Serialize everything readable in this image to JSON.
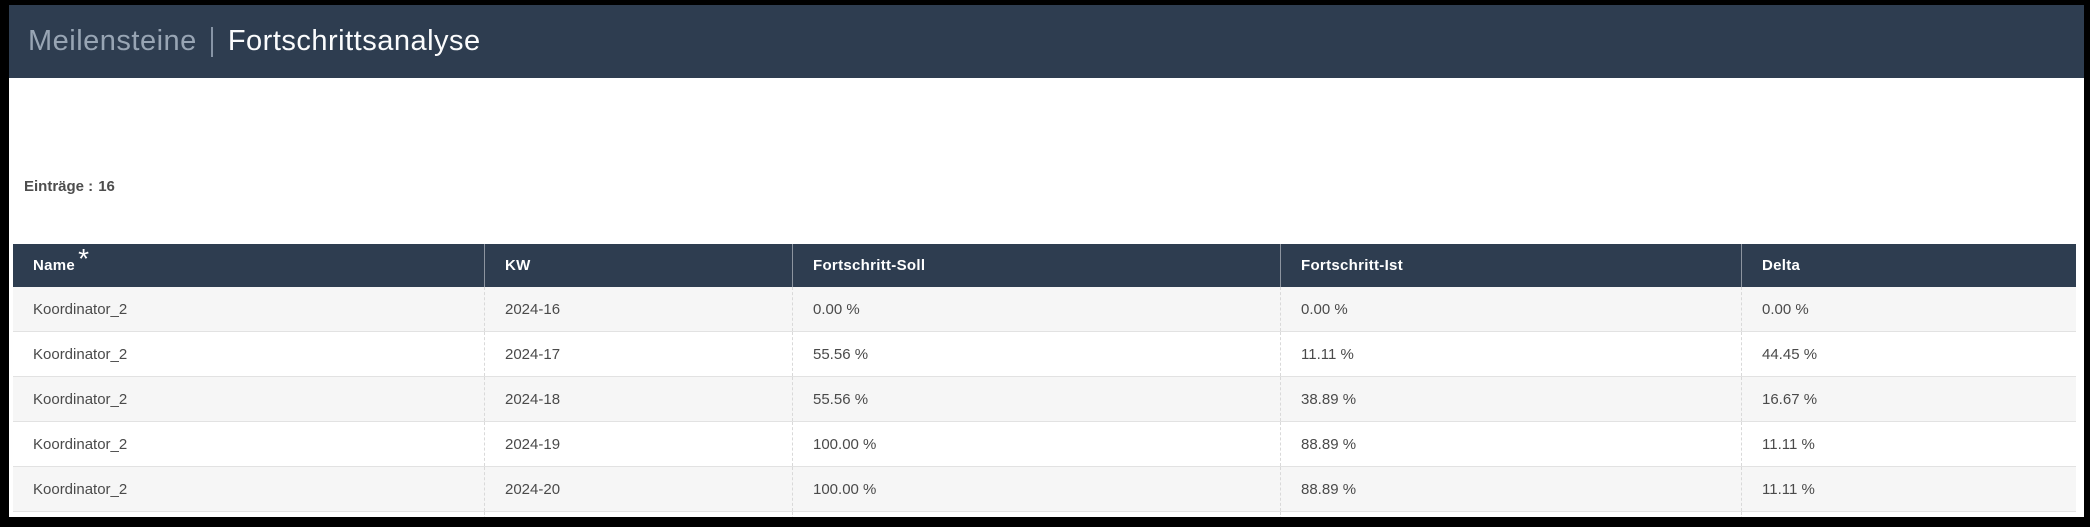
{
  "header": {
    "module": "Meilensteine",
    "page": "Fortschrittsanalyse"
  },
  "entries": {
    "label": "Einträge :",
    "count": "16"
  },
  "table": {
    "columns": [
      {
        "label": "Name",
        "marker": "*"
      },
      {
        "label": "KW",
        "marker": ""
      },
      {
        "label": "Fortschritt-Soll",
        "marker": ""
      },
      {
        "label": "Fortschritt-Ist",
        "marker": ""
      },
      {
        "label": "Delta",
        "marker": ""
      }
    ],
    "rows": [
      [
        "Koordinator_2",
        "2024-16",
        "0.00 %",
        "0.00 %",
        "0.00 %"
      ],
      [
        "Koordinator_2",
        "2024-17",
        "55.56 %",
        "11.11 %",
        "44.45 %"
      ],
      [
        "Koordinator_2",
        "2024-18",
        "55.56 %",
        "38.89 %",
        "16.67 %"
      ],
      [
        "Koordinator_2",
        "2024-19",
        "100.00 %",
        "88.89 %",
        "11.11 %"
      ],
      [
        "Koordinator_2",
        "2024-20",
        "100.00 %",
        "88.89 %",
        "11.11 %"
      ]
    ]
  },
  "colors": {
    "titlebar_bg": "#2e3d50",
    "table_header_bg": "#2e3d50",
    "row_alt_bg": "#f6f6f6",
    "cell_text": "#4a4a4a",
    "module_title_text": "#98a5b4",
    "page_title_text": "#fbfcfd"
  }
}
